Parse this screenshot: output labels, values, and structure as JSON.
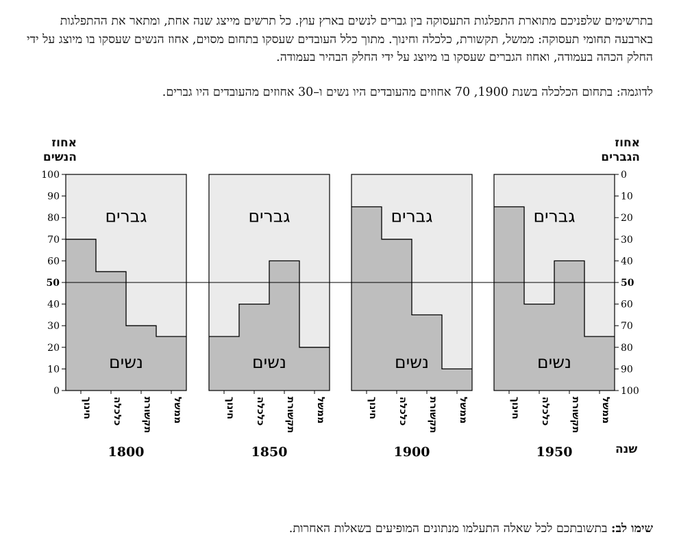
{
  "text": {
    "intro": "בתרשימים שלפניכם מתוארת התפלגות התעסוקה בין גברים לנשים בארץ עוץ.  כל תרשים מייצג שנה אחת, ומתאר את ההתפלגות בארבעה תחומי תעסוקה: ממשל, תקשורת, כלכלה וחינוך.  מתוך כלל העובדים שעסקו בתחום מסוים, אחוז הנשים שעסקו בו מיוצג על ידי החלק הכהה בעמודה, ואחוז הגברים שעסקו בו מיוצג על ידי החלק הבהיר בעמודה.",
    "example": "לדוגמה: בתחום הכלכלה בשנת 1900, 70 אחוזים מהעובדים היו נשים ו–30 אחוזים מהעובדים היו גברים.",
    "note_bold": "שימו לב:",
    "note_rest": " בתשובתכם לכל שאלה התעלמו מנתונים המופיעים בשאלות האחרות."
  },
  "chart_data": {
    "type": "bar",
    "left_axis_title": [
      "אחוז",
      "הנשים"
    ],
    "right_axis_title": [
      "אחוז",
      "הגברים"
    ],
    "left_ticks": [
      0,
      10,
      20,
      30,
      40,
      50,
      60,
      70,
      80,
      90,
      100
    ],
    "right_ticks": [
      100,
      90,
      80,
      70,
      60,
      50,
      40,
      30,
      20,
      10,
      0
    ],
    "ylim": [
      0,
      100
    ],
    "reference_line": 50,
    "categories": [
      "חינוך",
      "כלכלה",
      "תקשורת",
      "ממשל"
    ],
    "men_label": "גברים",
    "women_label": "נשים",
    "year_label": "שנה",
    "colors": {
      "women": "#bebebe",
      "men": "#ebebeb",
      "line": "#000000"
    },
    "panels": [
      {
        "year": "1800",
        "women": [
          70,
          55,
          30,
          25
        ]
      },
      {
        "year": "1850",
        "women": [
          25,
          40,
          60,
          20
        ]
      },
      {
        "year": "1900",
        "women": [
          85,
          70,
          35,
          10
        ]
      },
      {
        "year": "1950",
        "women": [
          85,
          40,
          60,
          25
        ]
      }
    ]
  }
}
